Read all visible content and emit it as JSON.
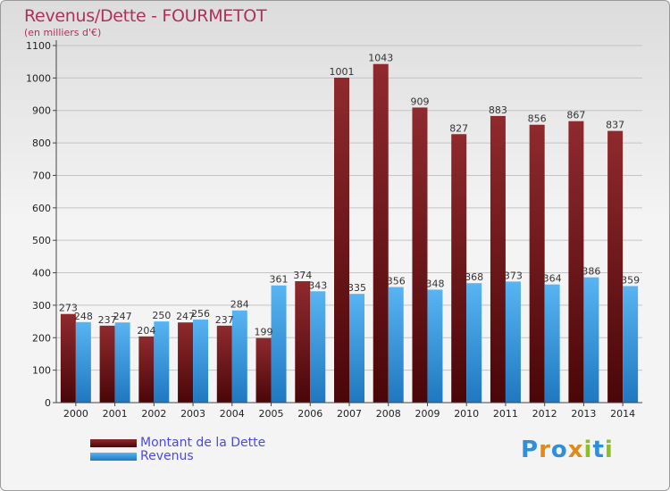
{
  "header": {
    "title": "Revenus/Dette - FOURMETOT",
    "subtitle": "(en milliers d'€)"
  },
  "legend": {
    "items": [
      {
        "label": "Montant de la Dette",
        "color": "#8b1f24"
      },
      {
        "label": "Revenus",
        "color": "#3f9be6"
      }
    ]
  },
  "logo": {
    "text": "Proxiti",
    "letters": [
      {
        "ch": "P",
        "color": "#2f8fd8"
      },
      {
        "ch": "r",
        "color": "#e08a1a"
      },
      {
        "ch": "o",
        "color": "#2f8fd8"
      },
      {
        "ch": "x",
        "color": "#e08a1a"
      },
      {
        "ch": "i",
        "color": "#8cbf26"
      },
      {
        "ch": "t",
        "color": "#2f8fd8"
      },
      {
        "ch": "i",
        "color": "#8cbf26"
      }
    ]
  },
  "chart_data": {
    "type": "bar",
    "title": "Revenus/Dette - FOURMETOT",
    "subtitle": "(en milliers d'€)",
    "categories": [
      "2000",
      "2001",
      "2002",
      "2003",
      "2004",
      "2005",
      "2006",
      "2007",
      "2008",
      "2009",
      "2010",
      "2011",
      "2012",
      "2013",
      "2014"
    ],
    "series": [
      {
        "name": "Montant de la Dette",
        "color": "#8b1f24",
        "values": [
          273,
          237,
          204,
          247,
          237,
          199,
          374,
          1001,
          1043,
          909,
          827,
          883,
          856,
          867,
          837
        ]
      },
      {
        "name": "Revenus",
        "color": "#3f9be6",
        "values": [
          248,
          247,
          250,
          256,
          284,
          361,
          343,
          335,
          356,
          348,
          368,
          373,
          364,
          386,
          359
        ]
      }
    ],
    "ylim": [
      0,
      1100
    ],
    "yticks": [
      0,
      100,
      200,
      300,
      400,
      500,
      600,
      700,
      800,
      900,
      1000,
      1100
    ],
    "grid": true,
    "legend_position": "bottom-left"
  }
}
